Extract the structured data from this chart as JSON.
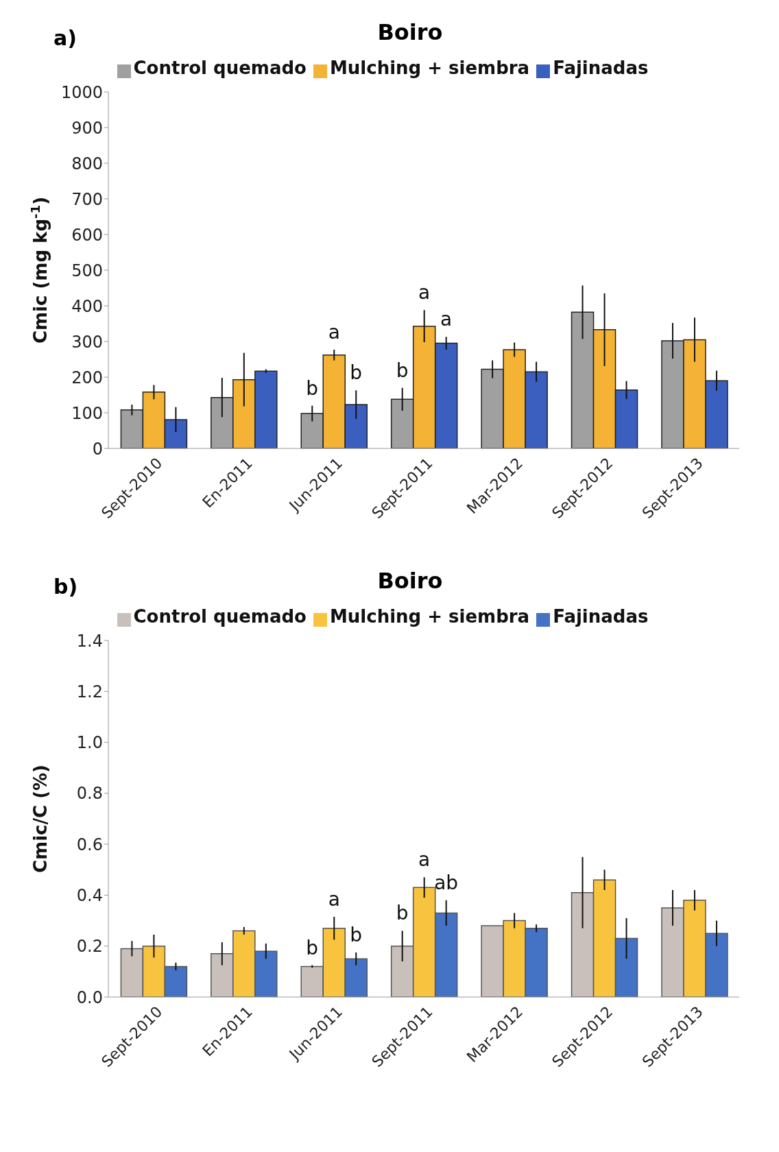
{
  "chart_data": [
    {
      "type": "bar",
      "title": "Boiro",
      "ylabel": "Cmic (mg kg$^{-1}$)",
      "annotations": [
        "a)"
      ],
      "categories": [
        "Sept-2010",
        "En-2011",
        "Jun-2011",
        "Sept-2011",
        "Mar-2012",
        "Sept-2012",
        "Sept-2013"
      ],
      "series": [
        {
          "name": "Control quemado",
          "color": "#a0a0a0",
          "values": [
            108,
            143,
            98,
            138,
            222,
            382,
            302
          ],
          "errors": [
            15,
            55,
            22,
            32,
            25,
            75,
            50
          ],
          "value_labels": [
            null,
            null,
            "b",
            "b",
            null,
            null,
            null
          ]
        },
        {
          "name": "Mulching + siembra",
          "color": "#f5b335",
          "values": [
            158,
            193,
            262,
            343,
            277,
            333,
            305
          ],
          "errors": [
            20,
            75,
            15,
            45,
            20,
            102,
            62
          ],
          "value_labels": [
            null,
            null,
            "a",
            "a",
            null,
            null,
            null
          ]
        },
        {
          "name": "Fajinadas",
          "color": "#3a5fbf",
          "values": [
            81,
            217,
            123,
            295,
            215,
            164,
            190
          ],
          "errors": [
            35,
            5,
            40,
            18,
            28,
            25,
            28
          ],
          "value_labels": [
            null,
            null,
            "b",
            "a",
            null,
            null,
            null
          ]
        }
      ],
      "ylim": [
        0,
        1000
      ],
      "yticks": [
        0,
        100,
        200,
        300,
        400,
        500,
        600,
        700,
        800,
        900,
        1000
      ],
      "grid": false,
      "legend": "top"
    },
    {
      "type": "bar",
      "title": "Boiro",
      "ylabel": "Cmic/C (%)",
      "annotations": [
        "b)"
      ],
      "categories": [
        "Sept-2010",
        "En-2011",
        "Jun-2011",
        "Sept-2011",
        "Mar-2012",
        "Sept-2012",
        "Sept-2013"
      ],
      "series": [
        {
          "name": "Control quemado",
          "color": "#c9c0bb",
          "values": [
            0.19,
            0.17,
            0.12,
            0.2,
            0.28,
            0.41,
            0.35
          ],
          "errors": [
            0.03,
            0.045,
            0.005,
            0.06,
            null,
            0.14,
            0.07
          ],
          "value_labels": [
            null,
            null,
            "b",
            "b",
            null,
            null,
            null
          ]
        },
        {
          "name": "Mulching + siembra",
          "color": "#f8c440",
          "values": [
            0.2,
            0.26,
            0.27,
            0.43,
            0.3,
            0.46,
            0.38
          ],
          "errors": [
            0.045,
            0.015,
            0.045,
            0.04,
            0.03,
            0.04,
            0.04
          ],
          "value_labels": [
            null,
            null,
            "a",
            "a",
            null,
            null,
            null
          ]
        },
        {
          "name": "Fajinadas",
          "color": "#4472c4",
          "values": [
            0.12,
            0.18,
            0.15,
            0.33,
            0.27,
            0.23,
            0.25
          ],
          "errors": [
            0.015,
            0.03,
            0.025,
            0.05,
            0.015,
            0.08,
            0.05
          ],
          "value_labels": [
            null,
            null,
            "b",
            "ab",
            null,
            null,
            null
          ]
        }
      ],
      "ylim": [
        0,
        1.4
      ],
      "yticks": [
        {
          "value": 0,
          "label": "0.0"
        },
        0.2,
        0.4,
        0.6,
        0.8,
        {
          "value": 1,
          "label": "1.0"
        },
        1.2,
        1.4
      ],
      "grid": false,
      "legend": "top"
    }
  ]
}
